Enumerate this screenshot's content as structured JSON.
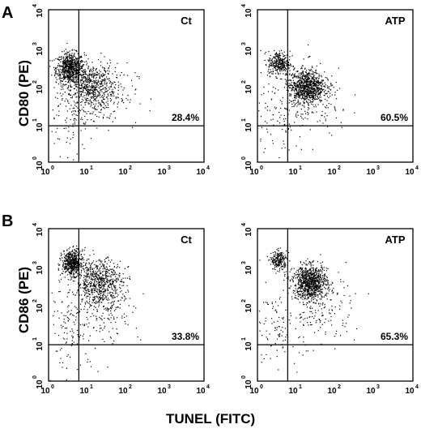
{
  "panel_labels": [
    "A",
    "B"
  ],
  "row_ylabels": [
    "CD80 (PE)",
    "CD86 (PE)"
  ],
  "xlabel": "TUNEL (FITC)",
  "chart_data": [
    {
      "type": "scatter",
      "row": 0,
      "col": 0,
      "scale": "log",
      "title": "Ct",
      "percent_label": "28.4%",
      "xlim": [
        1,
        10000
      ],
      "ylim": [
        1,
        10000
      ],
      "gates": {
        "x": 6,
        "y": 9
      },
      "clusters": [
        {
          "cx": 3.5,
          "cy": 300,
          "sx": 0.18,
          "sy": 0.2,
          "n": 700
        },
        {
          "cx": 12,
          "cy": 100,
          "sx": 0.3,
          "sy": 0.3,
          "n": 600
        },
        {
          "cx": 4,
          "cy": 20,
          "sx": 0.35,
          "sy": 0.55,
          "n": 120
        },
        {
          "cx": 30,
          "cy": 60,
          "sx": 0.4,
          "sy": 0.4,
          "n": 120
        }
      ]
    },
    {
      "type": "scatter",
      "row": 0,
      "col": 1,
      "scale": "log",
      "title": "ATP",
      "percent_label": "60.5%",
      "xlim": [
        1,
        10000
      ],
      "ylim": [
        1,
        10000
      ],
      "gates": {
        "x": 6,
        "y": 9
      },
      "clusters": [
        {
          "cx": 3.5,
          "cy": 400,
          "sx": 0.14,
          "sy": 0.16,
          "n": 300
        },
        {
          "cx": 18,
          "cy": 100,
          "sx": 0.22,
          "sy": 0.22,
          "n": 850
        },
        {
          "cx": 4,
          "cy": 15,
          "sx": 0.35,
          "sy": 0.6,
          "n": 120
        },
        {
          "cx": 30,
          "cy": 40,
          "sx": 0.45,
          "sy": 0.45,
          "n": 150
        }
      ]
    },
    {
      "type": "scatter",
      "row": 1,
      "col": 0,
      "scale": "log",
      "title": "Ct",
      "percent_label": "33.8%",
      "xlim": [
        1,
        10000
      ],
      "ylim": [
        1,
        10000
      ],
      "gates": {
        "x": 6,
        "y": 9
      },
      "clusters": [
        {
          "cx": 4,
          "cy": 1300,
          "sx": 0.13,
          "sy": 0.16,
          "n": 550
        },
        {
          "cx": 20,
          "cy": 400,
          "sx": 0.3,
          "sy": 0.3,
          "n": 650
        },
        {
          "cx": 4,
          "cy": 30,
          "sx": 0.35,
          "sy": 0.6,
          "n": 150
        },
        {
          "cx": 30,
          "cy": 80,
          "sx": 0.45,
          "sy": 0.45,
          "n": 150
        }
      ]
    },
    {
      "type": "scatter",
      "row": 1,
      "col": 1,
      "scale": "log",
      "title": "ATP",
      "percent_label": "65.3%",
      "xlim": [
        1,
        10000
      ],
      "ylim": [
        1,
        10000
      ],
      "gates": {
        "x": 6,
        "y": 9
      },
      "clusters": [
        {
          "cx": 3.5,
          "cy": 1500,
          "sx": 0.1,
          "sy": 0.12,
          "n": 220
        },
        {
          "cx": 22,
          "cy": 400,
          "sx": 0.22,
          "sy": 0.22,
          "n": 900
        },
        {
          "cx": 4,
          "cy": 25,
          "sx": 0.35,
          "sy": 0.6,
          "n": 120
        },
        {
          "cx": 40,
          "cy": 80,
          "sx": 0.45,
          "sy": 0.45,
          "n": 160
        }
      ]
    }
  ]
}
